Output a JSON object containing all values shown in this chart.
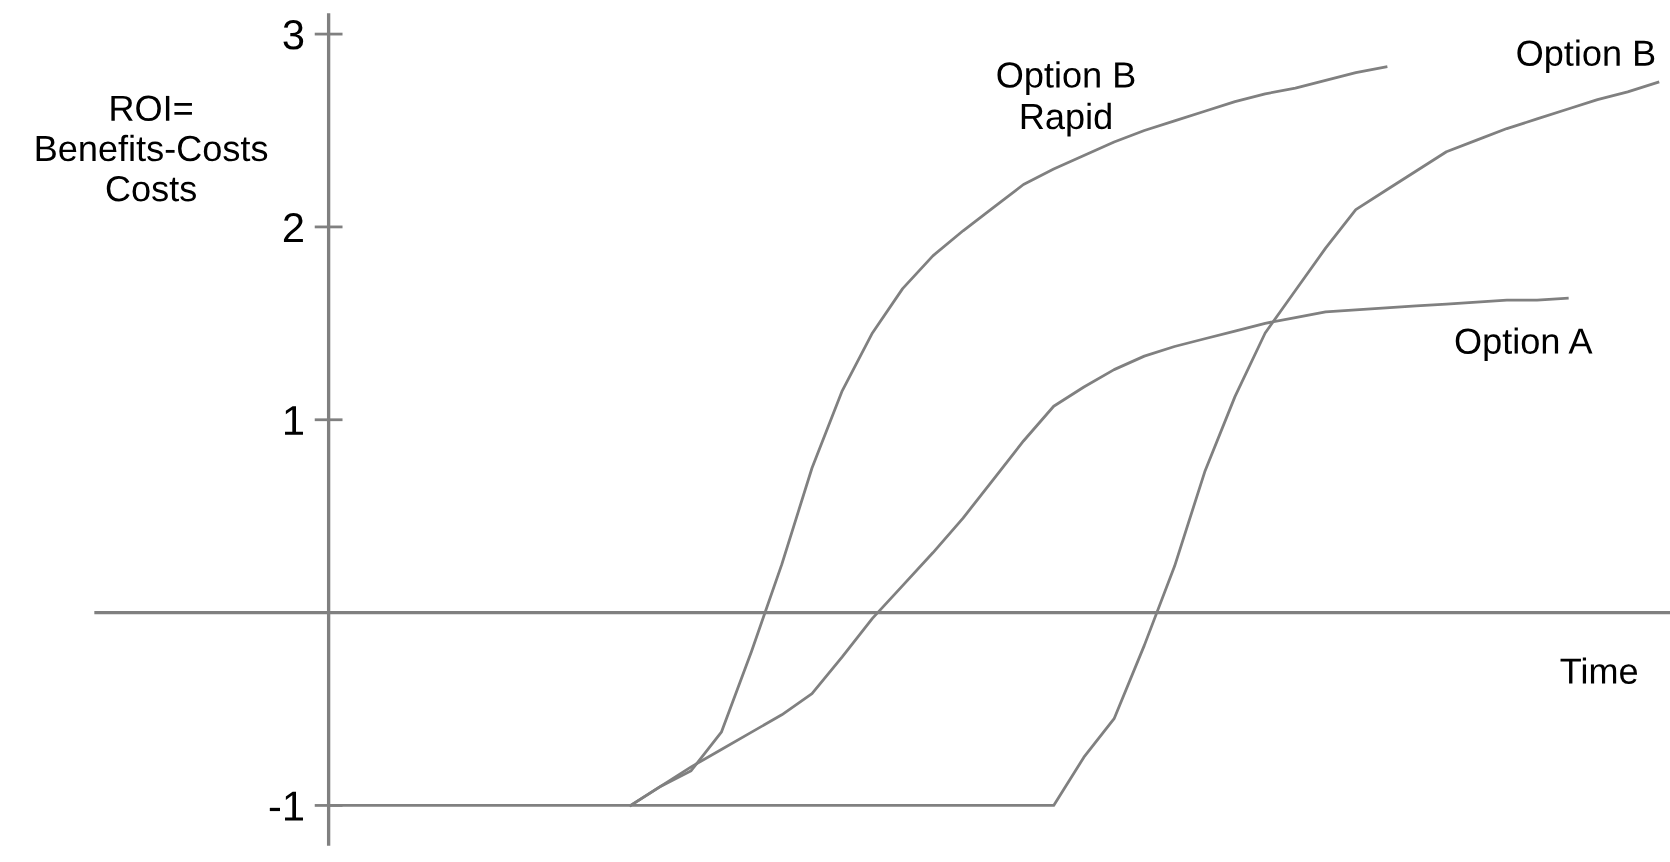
{
  "chart_data": {
    "type": "line",
    "xlabel": "Time",
    "ylabel": "ROI=\nBenefits-Costs\nCosts",
    "categories": [
      null,
      null,
      null,
      null,
      null,
      null,
      null,
      null,
      null,
      null,
      null,
      null,
      null,
      null,
      null,
      null,
      null,
      null,
      null,
      null,
      null,
      null,
      null,
      null,
      null,
      null,
      null,
      null,
      null,
      null,
      null,
      null,
      null,
      null,
      null,
      null,
      null,
      null,
      null,
      null,
      null,
      null,
      null,
      null,
      null
    ],
    "series": [
      {
        "name": "Option B\nRapid",
        "color": "#808080",
        "values": [
          null,
          null,
          null,
          null,
          null,
          null,
          null,
          null,
          null,
          null,
          -1,
          -0.9,
          -0.82,
          -0.62,
          -0.2,
          0.25,
          0.75,
          1.15,
          1.45,
          1.68,
          1.85,
          1.98,
          2.1,
          2.22,
          2.3,
          2.37,
          2.44,
          2.5,
          2.55,
          2.6,
          2.65,
          2.69,
          2.72,
          2.76,
          2.8,
          2.83,
          null,
          null,
          null,
          null,
          null,
          null,
          null,
          null,
          null
        ]
      },
      {
        "name": "Option B",
        "color": "#808080",
        "values": [
          -1,
          -1,
          -1,
          -1,
          -1,
          -1,
          -1,
          -1,
          -1,
          -1,
          -1,
          -1,
          -1,
          -1,
          -1,
          -1,
          -1,
          -1,
          -1,
          -1,
          -1,
          -1,
          -1,
          -1,
          -1,
          -0.75,
          -0.55,
          -0.17,
          0.24,
          0.73,
          1.12,
          1.45,
          1.67,
          1.89,
          2.09,
          2.19,
          2.29,
          2.39,
          2.45,
          2.51,
          2.56,
          2.61,
          2.66,
          2.7,
          2.75
        ]
      },
      {
        "name": "Option A",
        "color": "#808080",
        "values": [
          null,
          null,
          null,
          null,
          null,
          null,
          null,
          null,
          null,
          null,
          -1,
          -0.9,
          -0.8,
          -0.71,
          -0.62,
          -0.53,
          -0.42,
          -0.23,
          -0.03,
          0.14,
          0.31,
          0.49,
          0.69,
          0.89,
          1.07,
          1.17,
          1.26,
          1.33,
          1.38,
          1.42,
          1.46,
          1.5,
          1.53,
          1.56,
          1.57,
          1.58,
          1.59,
          1.6,
          1.61,
          1.62,
          1.62,
          1.63,
          null,
          null,
          null
        ]
      }
    ],
    "ylim": [
      -1.2,
      3.1
    ],
    "yticks": [
      -1,
      1,
      2,
      3
    ],
    "tick_labels": "y",
    "grid": false,
    "legend": false,
    "marker": "none",
    "line_style": "solid"
  }
}
